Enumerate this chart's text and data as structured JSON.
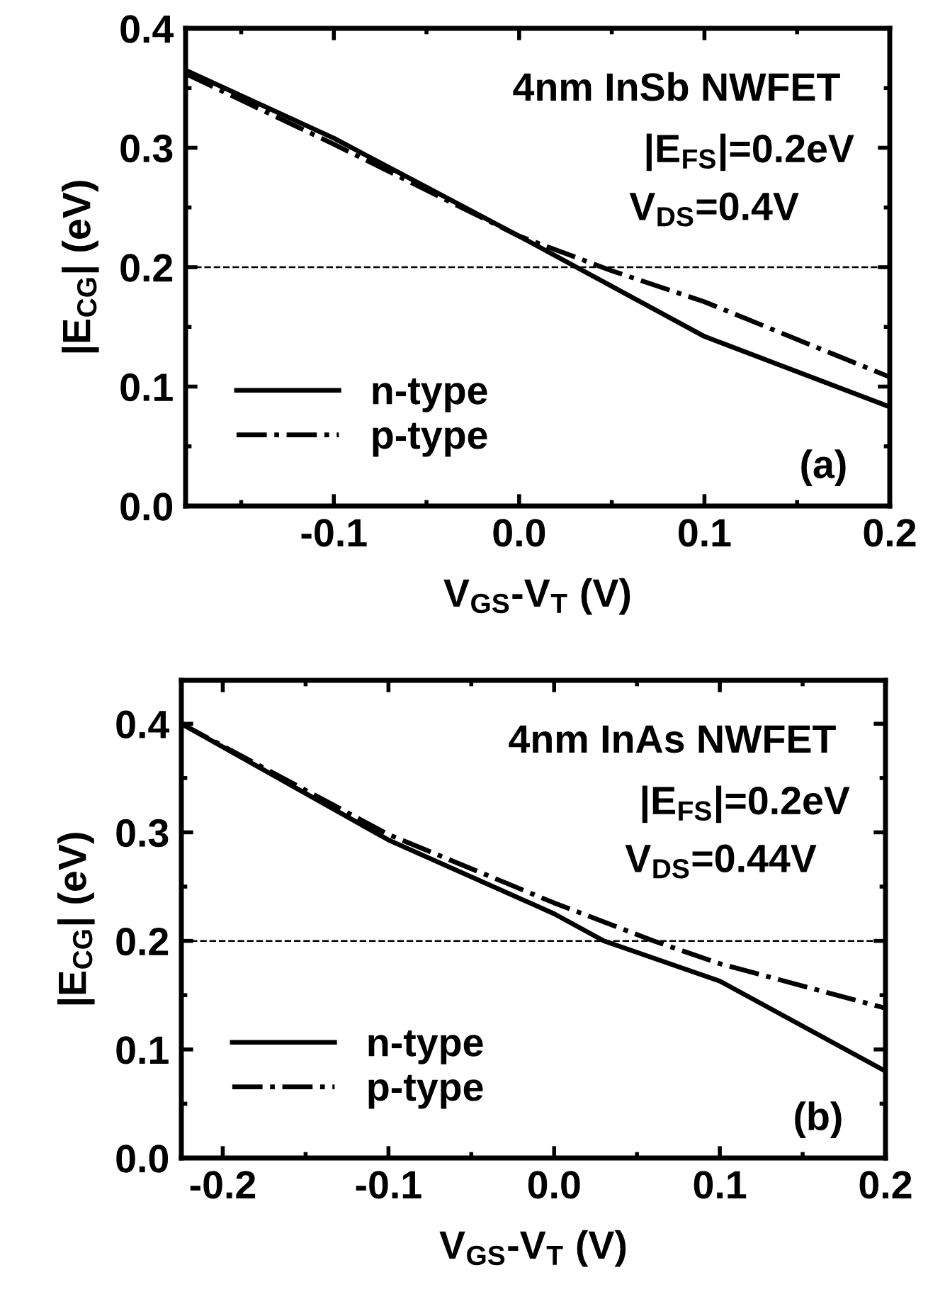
{
  "chart_data": [
    {
      "type": "line",
      "xlabel": "V$_{GS}$-V$_{T}$ (V)",
      "ylabel": "|E$_{CG}$| (eV)",
      "xlim": [
        -0.18,
        0.2
      ],
      "xticks": [
        -0.1,
        {
          "value": 0,
          "label": "0.0"
        },
        0.1,
        0.2
      ],
      "ylim": [
        0,
        0.4
      ],
      "yticks": [
        {
          "value": 0,
          "label": "0.0"
        },
        0.1,
        0.2,
        0.3,
        0.4
      ],
      "series": [
        {
          "name": "n-type",
          "color": "#000000",
          "line_style": "solid",
          "x": [
            -0.18,
            -0.1,
            0.0,
            0.1,
            0.2
          ],
          "values": [
            0.365,
            0.308,
            0.226,
            0.142,
            0.083
          ]
        },
        {
          "name": "p-type",
          "color": "#000000",
          "line_style": "dashdot",
          "x": [
            -0.18,
            -0.1,
            0.0,
            0.05,
            0.1,
            0.2
          ],
          "values": [
            0.362,
            0.303,
            0.226,
            0.197,
            0.171,
            0.108
          ]
        }
      ],
      "ref_lines": [
        {
          "axis": "y",
          "value": 0.2,
          "label": null,
          "color": "#000000",
          "line_style": "dashed"
        }
      ],
      "annotations": [
        "4nm InSb NWFET",
        "|E$_{FS}$|=0.2eV",
        "V$_{DS}$=0.4V",
        "(a)"
      ],
      "legend": "bottom left",
      "grid": false
    },
    {
      "type": "line",
      "xlabel": "V$_{GS}$-V$_{T}$ (V)",
      "ylabel": "|E$_{CG}$| (eV)",
      "xlim": [
        -0.225,
        0.2
      ],
      "xticks": [
        -0.2,
        -0.1,
        {
          "value": 0,
          "label": "0.0"
        },
        0.1,
        0.2
      ],
      "ylim": [
        0,
        0.44
      ],
      "yticks": [
        {
          "value": 0,
          "label": "0.0"
        },
        0.1,
        0.2,
        0.3,
        0.4
      ],
      "series": [
        {
          "name": "n-type",
          "color": "#000000",
          "line_style": "solid",
          "x": [
            -0.225,
            -0.1,
            0.0,
            0.03,
            0.1,
            0.2
          ],
          "values": [
            0.4,
            0.293,
            0.225,
            0.2,
            0.163,
            0.08
          ]
        },
        {
          "name": "p-type",
          "color": "#000000",
          "line_style": "dashdot",
          "x": [
            -0.225,
            -0.1,
            0.0,
            0.06,
            0.1,
            0.2
          ],
          "values": [
            0.4,
            0.298,
            0.235,
            0.2,
            0.179,
            0.138
          ]
        }
      ],
      "ref_lines": [
        {
          "axis": "y",
          "value": 0.2,
          "label": null,
          "color": "#000000",
          "line_style": "dashed"
        }
      ],
      "annotations": [
        "4nm InAs NWFET",
        "|E$_{FS}$|=0.2eV",
        "V$_{DS}$=0.44V",
        "(b)"
      ],
      "legend": "bottom left",
      "grid": false
    }
  ]
}
